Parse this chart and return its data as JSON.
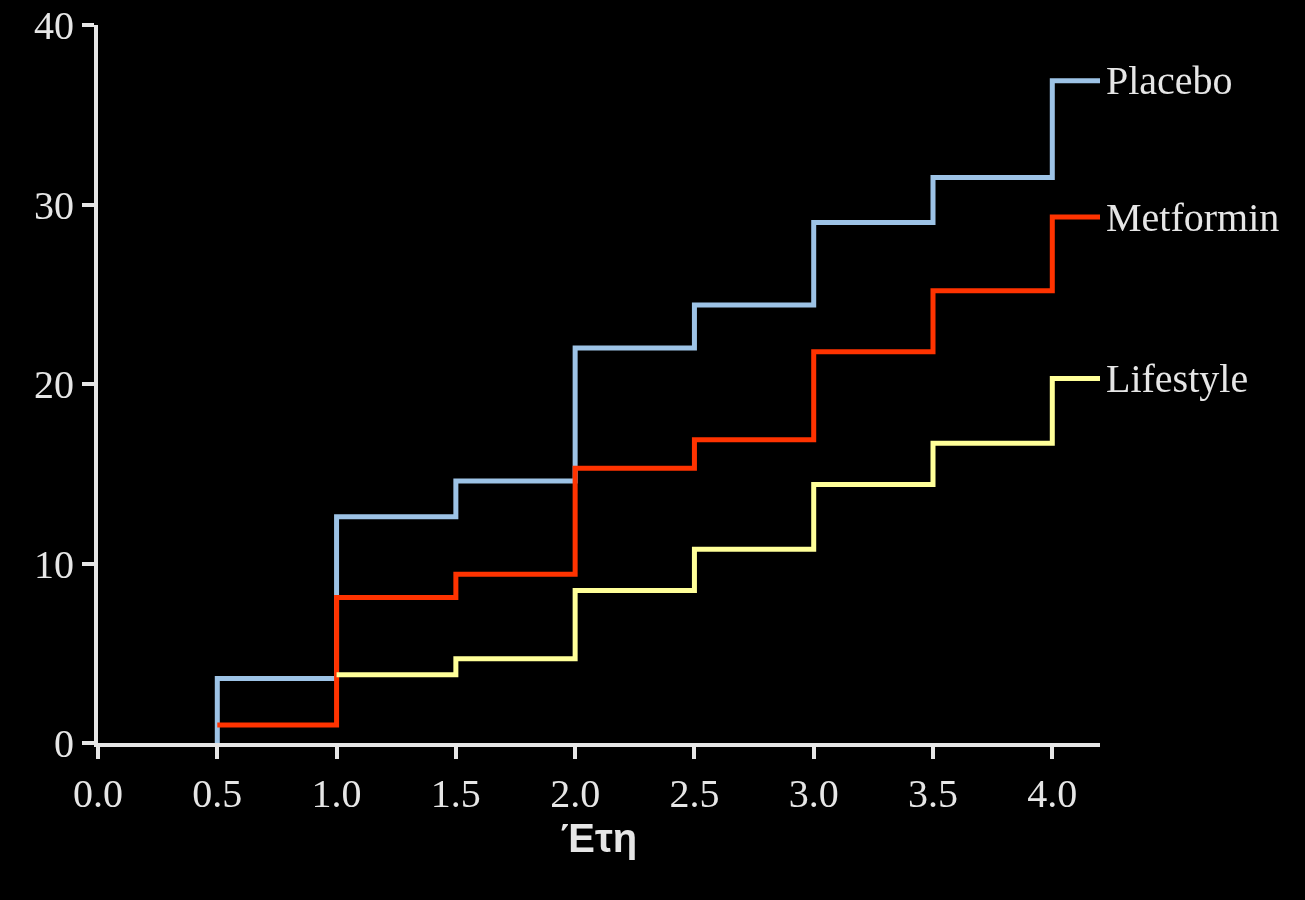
{
  "chart_data": {
    "type": "step",
    "xlabel": "Έτη",
    "xlim": [
      0,
      4.2
    ],
    "xticks": [
      {
        "value": 0,
        "label": "0.0"
      },
      {
        "value": 0.5,
        "label": "0.5"
      },
      {
        "value": 1,
        "label": "1.0"
      },
      {
        "value": 1.5,
        "label": "1.5"
      },
      {
        "value": 2,
        "label": "2.0"
      },
      {
        "value": 2.5,
        "label": "2.5"
      },
      {
        "value": 3,
        "label": "3.0"
      },
      {
        "value": 3.5,
        "label": "3.5"
      },
      {
        "value": 4,
        "label": "4.0"
      }
    ],
    "ylim": [
      0,
      40
    ],
    "yticks": [
      0,
      10,
      20,
      30,
      40
    ],
    "grid": false,
    "legend": false,
    "series": [
      {
        "name": "Placebo",
        "color": "#9dc3e6",
        "x": [
          0.5,
          0.5,
          1,
          1.5,
          2,
          2.5,
          3,
          3.5,
          4,
          4.2
        ],
        "values": [
          0,
          3.6,
          12.6,
          14.6,
          22.0,
          24.4,
          29.0,
          31.5,
          36.9,
          36.9
        ]
      },
      {
        "name": "Metformin",
        "color": "#ff3300",
        "x": [
          0.5,
          1,
          1.5,
          2,
          2.5,
          3,
          3.5,
          4,
          4.2
        ],
        "values": [
          1.0,
          8.1,
          9.4,
          15.3,
          16.9,
          21.8,
          25.2,
          29.3,
          29.3
        ]
      },
      {
        "name": "Lifestyle",
        "color": "#ffff99",
        "x": [
          1,
          1.5,
          2,
          2.5,
          3,
          3.5,
          4,
          4.2
        ],
        "values": [
          3.8,
          4.7,
          8.5,
          10.8,
          14.4,
          16.7,
          20.3,
          20.3
        ]
      }
    ]
  }
}
